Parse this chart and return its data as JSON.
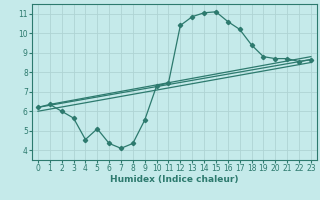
{
  "title": "",
  "xlabel": "Humidex (Indice chaleur)",
  "bg_color": "#c5eaea",
  "line_color": "#2d7a6e",
  "grid_color": "#afd4d4",
  "xlim": [
    -0.5,
    23.5
  ],
  "ylim": [
    3.5,
    11.5
  ],
  "xticks": [
    0,
    1,
    2,
    3,
    4,
    5,
    6,
    7,
    8,
    9,
    10,
    11,
    12,
    13,
    14,
    15,
    16,
    17,
    18,
    19,
    20,
    21,
    22,
    23
  ],
  "yticks": [
    4,
    5,
    6,
    7,
    8,
    9,
    10,
    11
  ],
  "curve1_x": [
    0,
    1,
    2,
    3,
    4,
    5,
    6,
    7,
    8,
    9,
    10,
    11,
    12,
    13,
    14,
    15,
    16,
    17,
    18,
    19,
    20,
    21,
    22,
    23
  ],
  "curve1_y": [
    6.2,
    6.35,
    6.0,
    5.65,
    4.55,
    5.1,
    4.35,
    4.1,
    4.35,
    5.55,
    7.3,
    7.45,
    10.4,
    10.85,
    11.05,
    11.1,
    10.6,
    10.2,
    9.4,
    8.8,
    8.7,
    8.7,
    8.55,
    8.65
  ],
  "line2_x": [
    0,
    23
  ],
  "line2_y": [
    6.2,
    8.65
  ],
  "line3_x": [
    0,
    23
  ],
  "line3_y": [
    6.0,
    8.5
  ],
  "line4_x": [
    1,
    23
  ],
  "line4_y": [
    6.35,
    8.8
  ],
  "tick_fontsize": 5.5,
  "xlabel_fontsize": 6.5
}
